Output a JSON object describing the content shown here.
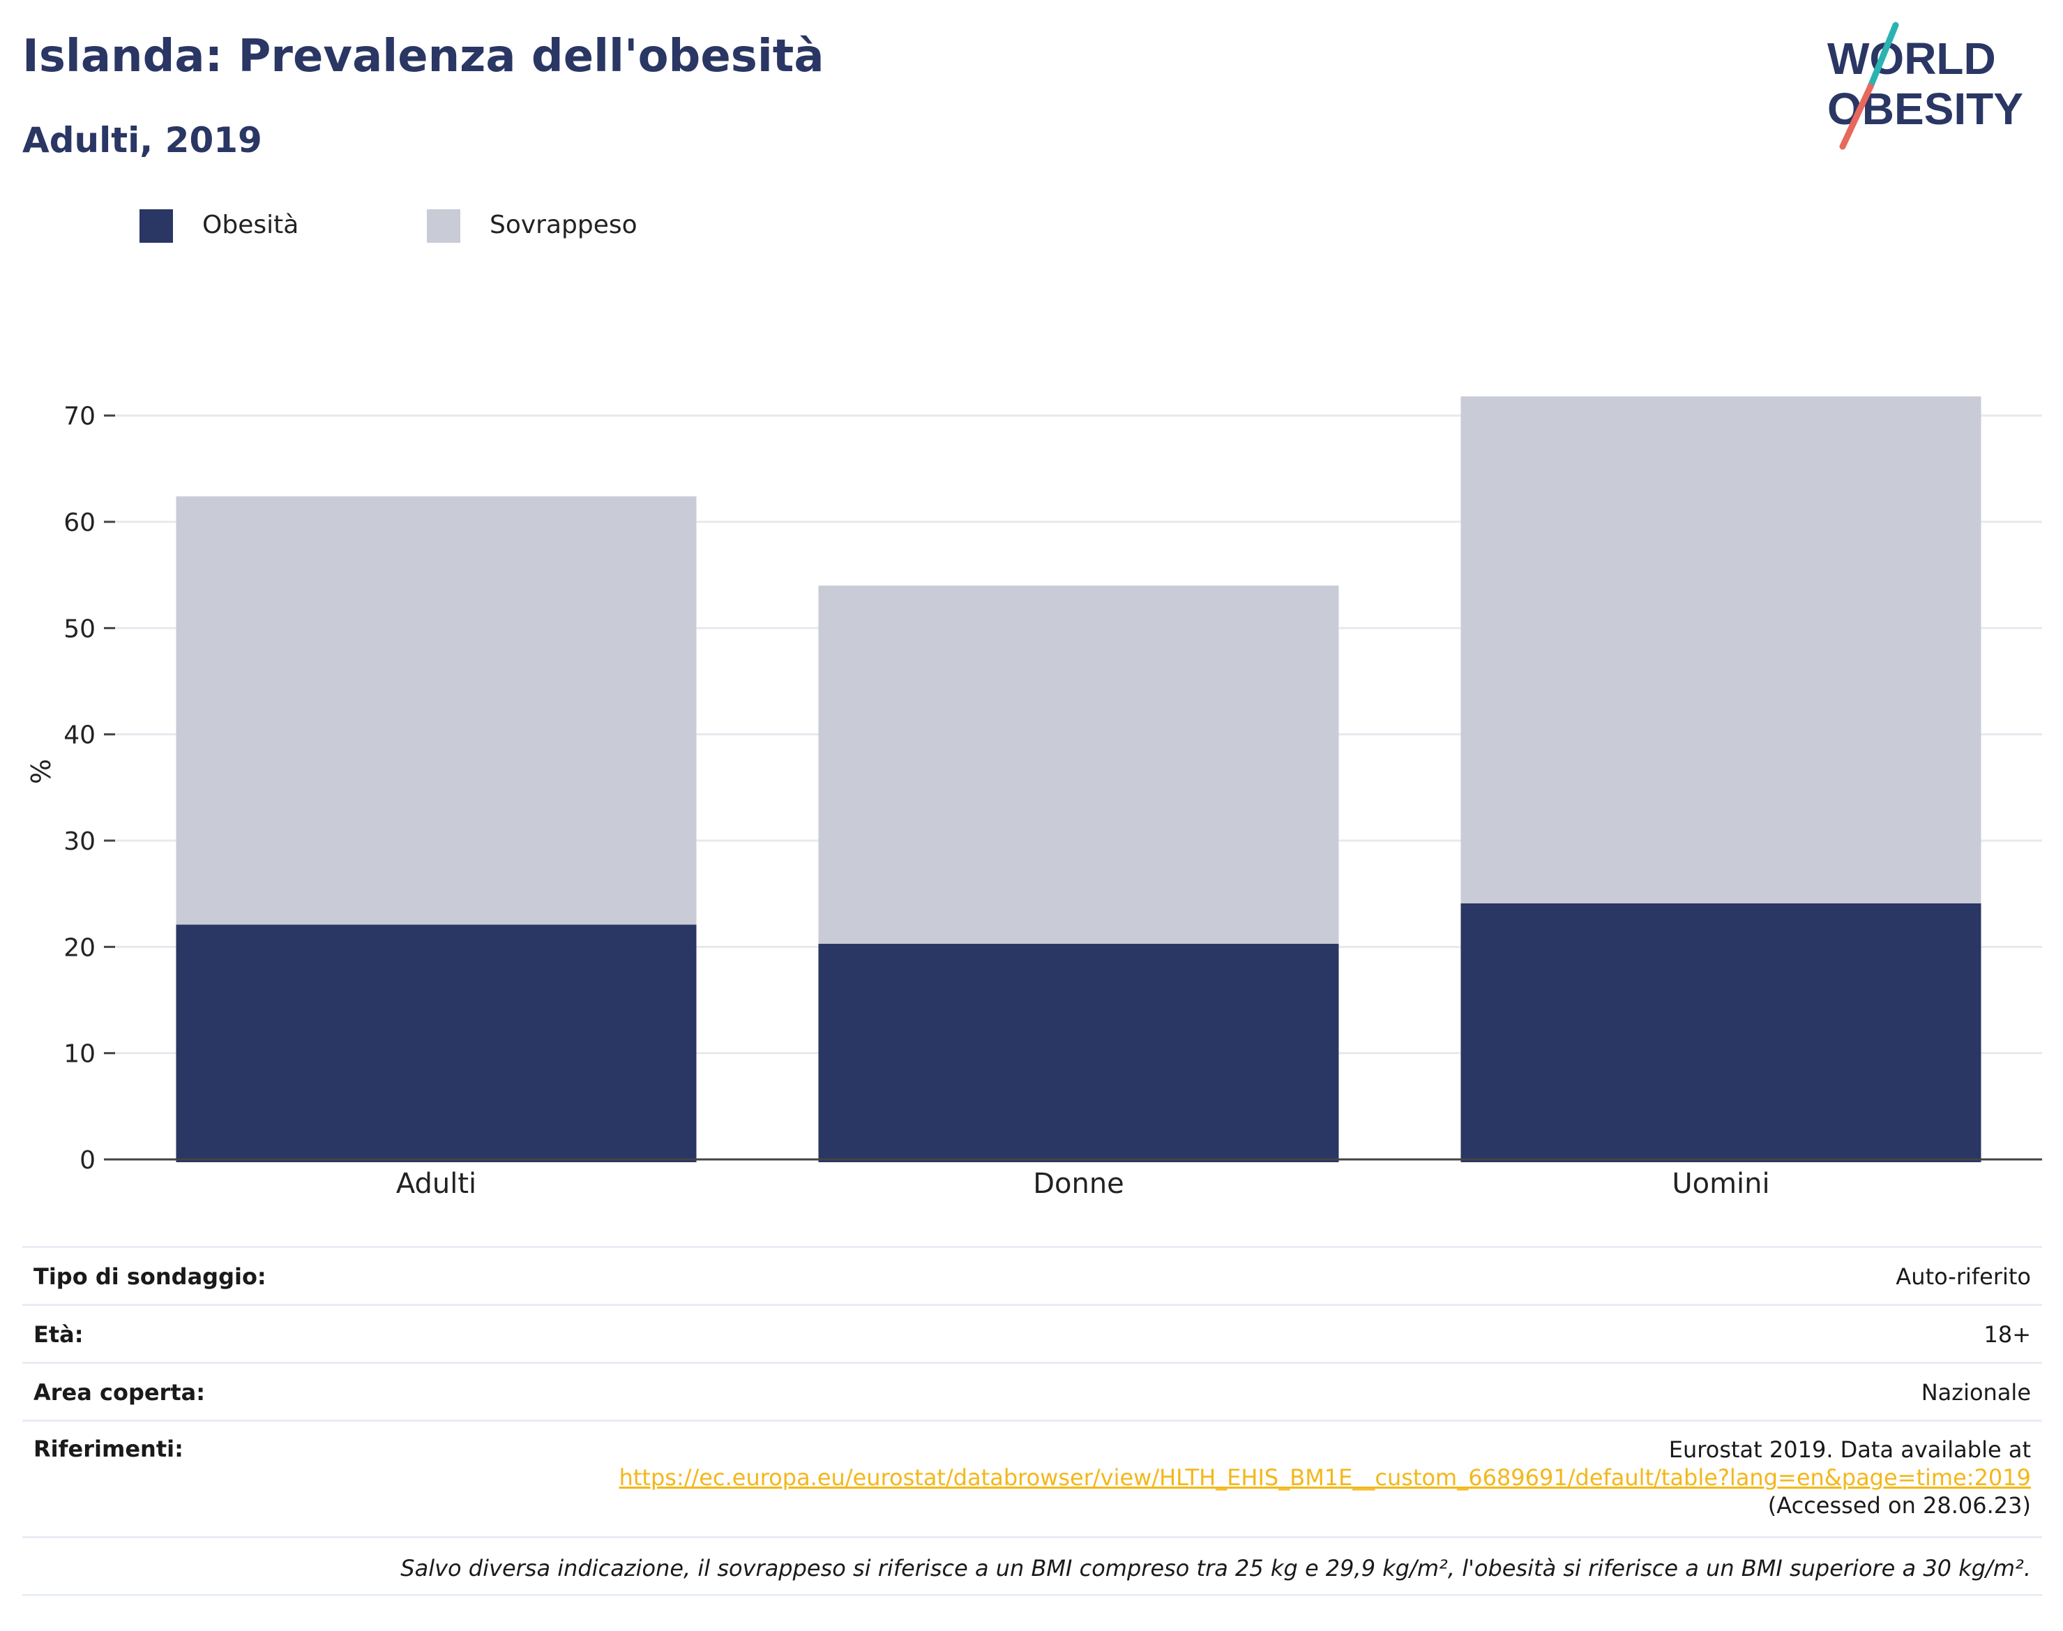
{
  "title": "Islanda: Prevalenza dell'obesità",
  "subtitle": "Adulti, 2019",
  "logo": {
    "line1": "WORLD",
    "line2": "OBESITY",
    "colors": {
      "text": "#2a3663",
      "slash_top": "#2bb3b1",
      "slash_bottom": "#e7685c"
    }
  },
  "legend": [
    {
      "label": "Obesità",
      "color": "#2a3663"
    },
    {
      "label": "Sovrappeso",
      "color": "#c9cbd7"
    }
  ],
  "chart_data": {
    "type": "bar",
    "stacked": true,
    "categories": [
      "Adulti",
      "Donne",
      "Uomini"
    ],
    "series": [
      {
        "name": "Obesità",
        "color": "#2a3663",
        "values": [
          22.1,
          20.3,
          24.1
        ]
      },
      {
        "name": "Sovrappeso",
        "color": "#c9cbd7",
        "values": [
          40.3,
          33.7,
          47.7
        ]
      }
    ],
    "totals": [
      62.4,
      54.0,
      71.8
    ],
    "ylabel": "%",
    "ylim": [
      0,
      73
    ],
    "yticks": [
      0,
      10,
      20,
      30,
      40,
      50,
      60,
      70
    ],
    "grid": true,
    "legend_position": "top-left"
  },
  "info": {
    "survey_label": "Tipo di sondaggio:",
    "survey_value": "Auto-riferito",
    "age_label": "Età:",
    "age_value": "18+",
    "area_label": "Area coperta:",
    "area_value": "Nazionale",
    "ref_label": "Riferimenti:",
    "ref_line1": "Eurostat 2019. Data available at",
    "ref_link": "https://ec.europa.eu/eurostat/databrowser/view/HLTH_EHIS_BM1E__custom_6689691/default/table?lang=en&page=time:2019",
    "ref_line3": "(Accessed on 28.06.23)",
    "note": "Salvo diversa indicazione, il sovrappeso si riferisce a un BMI compreso tra 25 kg e 29,9 kg/m², l'obesità si riferisce a un BMI superiore a 30 kg/m²."
  }
}
